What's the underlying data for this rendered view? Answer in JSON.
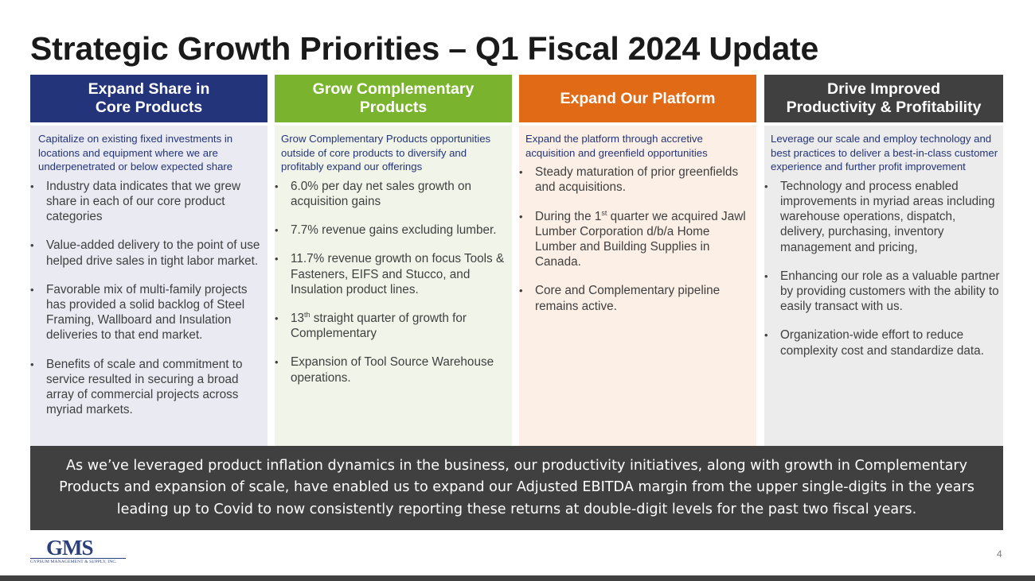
{
  "title": "Strategic Growth Priorities – Q1 Fiscal 2024 Update",
  "columns": [
    {
      "header_line1": "Expand Share in",
      "header_line2": "Core Products",
      "header_color": "#24347a",
      "body_bg": "#e9eaf2",
      "intro_color": "#24347a",
      "intro": "Capitalize on existing fixed investments in locations and equipment where we are underpenetrated or below expected share",
      "bullets": [
        "Industry data indicates that we grew share in each of our core product categories",
        "Value-added delivery to the point of use helped drive sales in tight labor market.",
        "Favorable mix of multi-family projects has provided a solid backlog of Steel Framing, Wallboard and Insulation deliveries to that end market.",
        "Benefits of scale and commitment to service resulted in securing a broad array of commercial projects across myriad markets."
      ]
    },
    {
      "header_line1": "Grow Complementary",
      "header_line2": "Products",
      "header_color": "#7ab42e",
      "body_bg": "#f1f5e9",
      "intro_color": "#24347a",
      "intro": "Grow Complementary Products opportunities outside of core products to diversify and profitably expand our offerings",
      "bullets": [
        "6.0% per day net sales growth on acquisition gains",
        "7.7% revenue gains excluding lumber.",
        "11.7% revenue growth on focus Tools & Fasteners, EIFS and Stucco, and Insulation product lines.",
        {
          "pre": "13",
          "sup": "th",
          "post": " straight quarter of growth for Complementary"
        },
        "Expansion of Tool Source Warehouse operations."
      ]
    },
    {
      "header_line1": "Expand Our Platform",
      "header_line2": "",
      "header_color": "#e06a15",
      "body_bg": "#fbefe6",
      "intro_color": "#24347a",
      "intro": "Expand the platform through accretive acquisition and greenfield opportunities",
      "bullets": [
        "Steady maturation of prior greenfields and acquisitions.",
        {
          "pre": "During the 1",
          "sup": "st",
          "post": " quarter we acquired Jawl Lumber Corporation d/b/a Home Lumber and Building Supplies in Canada."
        },
        "Core and Complementary pipeline remains active."
      ]
    },
    {
      "header_line1": "Drive Improved",
      "header_line2": "Productivity & Profitability",
      "header_color": "#404040",
      "body_bg": "#ececec",
      "intro_color": "#24347a",
      "intro": "Leverage our scale and employ technology and best practices to deliver a best-in-class customer experience and further profit improvement",
      "bullets": [
        "Technology and process enabled improvements in myriad areas including warehouse operations, dispatch, delivery, purchasing, inventory management and pricing,",
        "Enhancing our role as a valuable partner by providing customers with the ability to easily transact with us.",
        "Organization-wide effort to reduce complexity cost and standardize data."
      ]
    }
  ],
  "bullet_glyph": "•",
  "summary": "As we’ve leveraged product inflation dynamics in the business, our productivity initiatives, along with growth in Complementary Products and expansion of scale, have enabled us to expand our Adjusted EBITDA margin from the upper single-digits in the years leading up to Covid to now consistently reporting these returns at double-digit levels for the past two fiscal years.",
  "logo": {
    "mark": "GMS",
    "subtitle": "GYPSUM MANAGEMENT & SUPPLY, INC."
  },
  "page_number": "4"
}
